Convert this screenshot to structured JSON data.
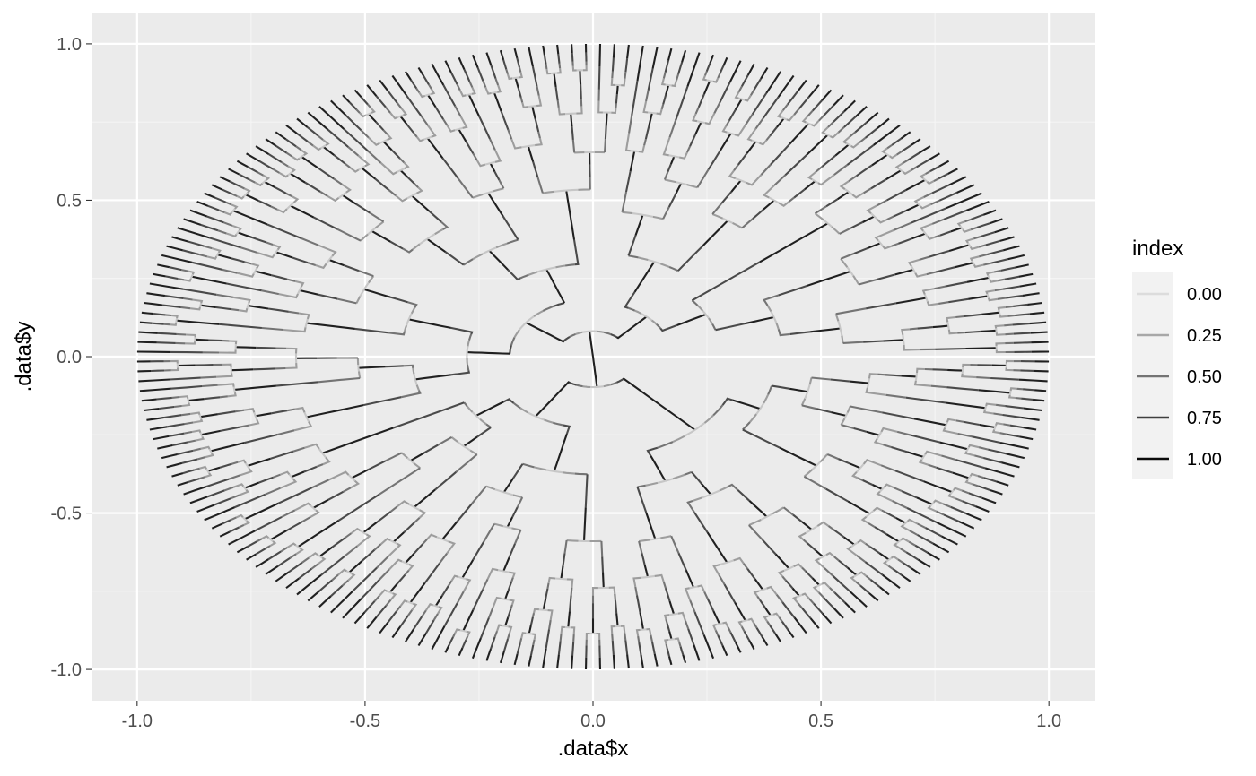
{
  "chart_data": {
    "type": "dendrogram",
    "layout": "circular",
    "xlabel": ".data$x",
    "ylabel": ".data$y",
    "xlim": [
      -1.1,
      1.1
    ],
    "ylim": [
      -1.1,
      1.1
    ],
    "x_ticks": [
      -1.0,
      -0.5,
      0.0,
      0.5,
      1.0
    ],
    "y_ticks": [
      -1.0,
      -0.5,
      0.0,
      0.5,
      1.0
    ],
    "x_tick_labels": [
      "-1.0",
      "-0.5",
      "0.0",
      "0.5",
      "1.0"
    ],
    "y_tick_labels": [
      "-1.0",
      "-0.5",
      "0.0",
      "0.5",
      "1.0"
    ],
    "grid": true,
    "leaf_count": 200,
    "leaf_radius": 1.0,
    "legend": {
      "title": "index",
      "position": "right",
      "breaks": [
        0.0,
        0.25,
        0.5,
        0.75,
        1.0
      ],
      "labels": [
        "0.00",
        "0.25",
        "0.50",
        "0.75",
        "1.00"
      ],
      "colors": [
        "#dcdcdc",
        "#a8a8a8",
        "#747474",
        "#3f3f3f",
        "#0b0b0b"
      ]
    },
    "colors": {
      "panel_background": "#ebebeb",
      "grid_major": "#ffffff",
      "grid_minor": "#f5f5f5",
      "edge_low": "#dcdcdc",
      "edge_high": "#0b0b0b"
    }
  }
}
